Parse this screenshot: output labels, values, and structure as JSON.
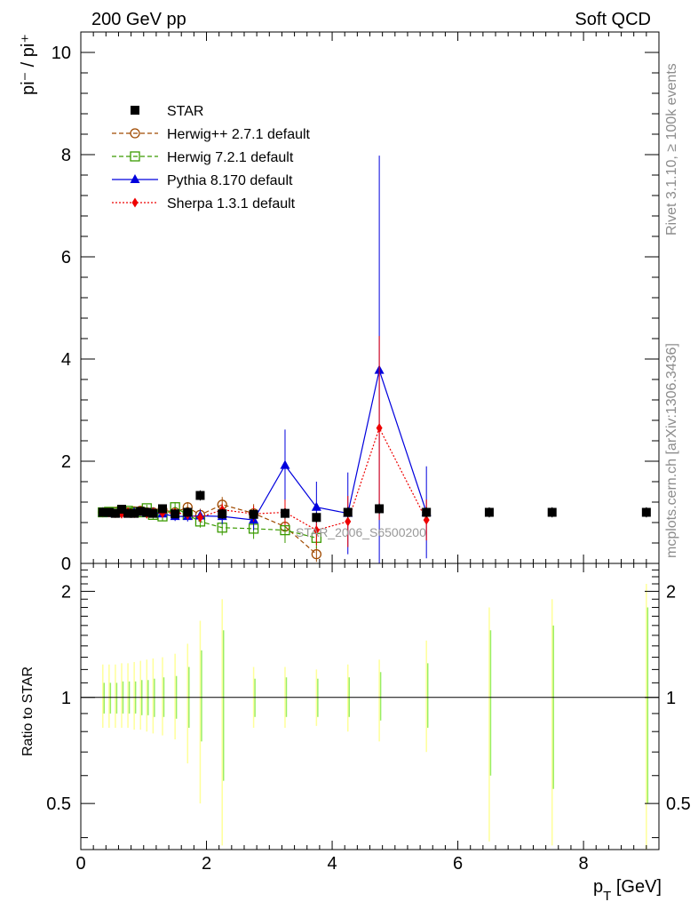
{
  "header": {
    "left": "200 GeV pp",
    "right": "Soft QCD"
  },
  "side_labels": {
    "rivet": "Rivet 3.1.10, ≥ 100k events",
    "mcplots": "mcplots.cern.ch [arXiv:1306.3436]"
  },
  "colors": {
    "star": "#000000",
    "herwigpp": "#a04a00",
    "herwig7": "#3a9a00",
    "pythia": "#0000dd",
    "sherpa": "#ee0000",
    "band_outer": "#ffff99",
    "band_inner": "#99ee66"
  },
  "chart_data": [
    {
      "type": "scatter",
      "title": "",
      "ylabel": "pi⁻ / pi⁺",
      "xlim": [
        0,
        9.2
      ],
      "ylim": [
        0,
        10.4
      ],
      "yticks": [
        0,
        2,
        4,
        6,
        8,
        10
      ],
      "watermark": "STAR_2006_S6500200",
      "legend_position": "top-left",
      "series": [
        {
          "name": "STAR",
          "style": "data",
          "color": "#000000",
          "points": [
            [
              0.35,
              1.0,
              0.04
            ],
            [
              0.45,
              1.0,
              0.04
            ],
            [
              0.55,
              0.98,
              0.04
            ],
            [
              0.65,
              1.06,
              0.05
            ],
            [
              0.75,
              0.98,
              0.05
            ],
            [
              0.85,
              0.98,
              0.05
            ],
            [
              0.95,
              1.02,
              0.06
            ],
            [
              1.05,
              1.0,
              0.06
            ],
            [
              1.15,
              0.98,
              0.06
            ],
            [
              1.3,
              1.07,
              0.07
            ],
            [
              1.5,
              0.97,
              0.08
            ],
            [
              1.7,
              1.0,
              0.09
            ],
            [
              1.9,
              1.33,
              0.1
            ],
            [
              2.25,
              0.97,
              0.1
            ],
            [
              2.75,
              0.96,
              0.1
            ],
            [
              3.25,
              0.98,
              0.1
            ],
            [
              3.75,
              0.9,
              0.1
            ],
            [
              4.25,
              1.0,
              0.1
            ],
            [
              4.75,
              1.07,
              0.1
            ],
            [
              5.5,
              1.0,
              0.1
            ],
            [
              6.5,
              1.0,
              0.1
            ],
            [
              7.5,
              1.0,
              0.1
            ],
            [
              9.0,
              1.0,
              0.1
            ]
          ]
        },
        {
          "name": "Herwig++ 2.7.1 default",
          "style": "dashed",
          "marker": "open-circle",
          "color": "#a04a00",
          "points": [
            [
              0.35,
              1.0,
              0.05
            ],
            [
              0.45,
              1.0,
              0.05
            ],
            [
              0.55,
              1.01,
              0.05
            ],
            [
              0.65,
              1.02,
              0.05
            ],
            [
              0.75,
              1.0,
              0.05
            ],
            [
              0.85,
              1.02,
              0.06
            ],
            [
              0.95,
              1.03,
              0.06
            ],
            [
              1.05,
              1.0,
              0.06
            ],
            [
              1.15,
              1.0,
              0.06
            ],
            [
              1.3,
              1.05,
              0.07
            ],
            [
              1.5,
              1.0,
              0.08
            ],
            [
              1.7,
              1.1,
              0.1
            ],
            [
              1.9,
              0.95,
              0.12
            ],
            [
              2.25,
              1.15,
              0.15
            ],
            [
              2.75,
              0.98,
              0.18
            ],
            [
              3.25,
              0.72,
              0.2
            ],
            [
              3.75,
              0.18,
              0.15
            ]
          ]
        },
        {
          "name": "Herwig 7.2.1 default",
          "style": "dashed",
          "marker": "open-square",
          "color": "#3a9a00",
          "points": [
            [
              0.35,
              1.0,
              0.05
            ],
            [
              0.45,
              1.01,
              0.05
            ],
            [
              0.55,
              1.0,
              0.05
            ],
            [
              0.65,
              1.02,
              0.05
            ],
            [
              0.75,
              1.03,
              0.05
            ],
            [
              0.85,
              1.0,
              0.06
            ],
            [
              0.95,
              1.0,
              0.06
            ],
            [
              1.05,
              1.08,
              0.07
            ],
            [
              1.15,
              0.95,
              0.08
            ],
            [
              1.3,
              0.92,
              0.09
            ],
            [
              1.5,
              1.1,
              0.1
            ],
            [
              1.7,
              0.95,
              0.1
            ],
            [
              1.9,
              0.82,
              0.12
            ],
            [
              2.25,
              0.7,
              0.15
            ],
            [
              2.75,
              0.68,
              0.2
            ],
            [
              3.25,
              0.65,
              0.25
            ],
            [
              3.75,
              0.5,
              0.2
            ]
          ]
        },
        {
          "name": "Pythia 8.170 default",
          "style": "solid",
          "marker": "triangle",
          "color": "#0000dd",
          "points": [
            [
              0.35,
              1.0,
              0.04
            ],
            [
              0.45,
              0.98,
              0.04
            ],
            [
              0.55,
              0.97,
              0.04
            ],
            [
              0.65,
              1.0,
              0.05
            ],
            [
              0.75,
              0.98,
              0.05
            ],
            [
              0.85,
              1.0,
              0.05
            ],
            [
              0.95,
              1.0,
              0.06
            ],
            [
              1.05,
              0.98,
              0.06
            ],
            [
              1.15,
              1.0,
              0.07
            ],
            [
              1.3,
              0.97,
              0.08
            ],
            [
              1.5,
              0.92,
              0.09
            ],
            [
              1.7,
              0.92,
              0.1
            ],
            [
              1.9,
              0.93,
              0.12
            ],
            [
              2.25,
              0.92,
              0.15
            ],
            [
              2.75,
              0.85,
              0.2
            ],
            [
              3.25,
              1.92,
              0.7
            ],
            [
              3.75,
              1.1,
              0.5
            ],
            [
              4.25,
              0.98,
              0.8
            ],
            [
              4.75,
              3.78,
              4.2
            ],
            [
              5.5,
              1.0,
              0.9
            ]
          ]
        },
        {
          "name": "Sherpa 1.3.1 default",
          "style": "dotted",
          "marker": "diamond",
          "color": "#ee0000",
          "points": [
            [
              0.35,
              1.0,
              0.04
            ],
            [
              0.45,
              1.0,
              0.04
            ],
            [
              0.55,
              0.98,
              0.04
            ],
            [
              0.65,
              0.97,
              0.05
            ],
            [
              0.75,
              1.0,
              0.05
            ],
            [
              0.85,
              0.98,
              0.05
            ],
            [
              0.95,
              1.02,
              0.06
            ],
            [
              1.05,
              0.97,
              0.06
            ],
            [
              1.15,
              1.0,
              0.07
            ],
            [
              1.3,
              0.98,
              0.07
            ],
            [
              1.5,
              1.0,
              0.08
            ],
            [
              1.7,
              0.95,
              0.09
            ],
            [
              1.9,
              0.9,
              0.1
            ],
            [
              2.25,
              1.05,
              0.12
            ],
            [
              2.75,
              0.97,
              0.15
            ],
            [
              3.25,
              1.0,
              0.25
            ],
            [
              3.75,
              0.65,
              0.3
            ],
            [
              4.25,
              0.82,
              0.5
            ],
            [
              4.75,
              2.65,
              1.8
            ],
            [
              5.5,
              0.85,
              0.4
            ]
          ]
        }
      ]
    },
    {
      "type": "scatter",
      "ylabel": "Ratio to STAR",
      "xlabel": "p_T [GeV]",
      "xlim": [
        0,
        9.2
      ],
      "ylim": [
        0.37,
        2.4
      ],
      "yscale": "log",
      "yticks": [
        0.5,
        1,
        2
      ],
      "xticks": [
        0,
        2,
        4,
        6,
        8
      ],
      "reference_line": 1,
      "bands": [
        {
          "x": 0.35,
          "inner": [
            0.9,
            1.1
          ],
          "outer": [
            0.82,
            1.24
          ]
        },
        {
          "x": 0.45,
          "inner": [
            0.9,
            1.1
          ],
          "outer": [
            0.82,
            1.24
          ]
        },
        {
          "x": 0.55,
          "inner": [
            0.9,
            1.1
          ],
          "outer": [
            0.82,
            1.24
          ]
        },
        {
          "x": 0.65,
          "inner": [
            0.9,
            1.11
          ],
          "outer": [
            0.82,
            1.25
          ]
        },
        {
          "x": 0.75,
          "inner": [
            0.9,
            1.11
          ],
          "outer": [
            0.82,
            1.25
          ]
        },
        {
          "x": 0.85,
          "inner": [
            0.9,
            1.11
          ],
          "outer": [
            0.81,
            1.26
          ]
        },
        {
          "x": 0.95,
          "inner": [
            0.89,
            1.12
          ],
          "outer": [
            0.81,
            1.27
          ]
        },
        {
          "x": 1.05,
          "inner": [
            0.89,
            1.12
          ],
          "outer": [
            0.8,
            1.28
          ]
        },
        {
          "x": 1.15,
          "inner": [
            0.88,
            1.13
          ],
          "outer": [
            0.79,
            1.29
          ]
        },
        {
          "x": 1.3,
          "inner": [
            0.88,
            1.14
          ],
          "outer": [
            0.78,
            1.3
          ]
        },
        {
          "x": 1.5,
          "inner": [
            0.87,
            1.15
          ],
          "outer": [
            0.76,
            1.33
          ]
        },
        {
          "x": 1.7,
          "inner": [
            0.82,
            1.22
          ],
          "outer": [
            0.65,
            1.42
          ]
        },
        {
          "x": 1.9,
          "inner": [
            0.75,
            1.36
          ],
          "outer": [
            0.5,
            1.65
          ]
        },
        {
          "x": 2.25,
          "inner": [
            0.58,
            1.55
          ],
          "outer": [
            0.38,
            1.9
          ]
        },
        {
          "x": 2.75,
          "inner": [
            0.88,
            1.13
          ],
          "outer": [
            0.82,
            1.22
          ]
        },
        {
          "x": 3.25,
          "inner": [
            0.88,
            1.14
          ],
          "outer": [
            0.82,
            1.22
          ]
        },
        {
          "x": 3.75,
          "inner": [
            0.88,
            1.13
          ],
          "outer": [
            0.83,
            1.2
          ]
        },
        {
          "x": 4.25,
          "inner": [
            0.88,
            1.14
          ],
          "outer": [
            0.8,
            1.24
          ]
        },
        {
          "x": 4.75,
          "inner": [
            0.86,
            1.18
          ],
          "outer": [
            0.75,
            1.28
          ]
        },
        {
          "x": 5.5,
          "inner": [
            0.82,
            1.25
          ],
          "outer": [
            0.7,
            1.45
          ]
        },
        {
          "x": 6.5,
          "inner": [
            0.6,
            1.55
          ],
          "outer": [
            0.39,
            1.8
          ]
        },
        {
          "x": 7.5,
          "inner": [
            0.55,
            1.6
          ],
          "outer": [
            0.38,
            1.9
          ]
        },
        {
          "x": 9.0,
          "inner": [
            0.5,
            1.8
          ],
          "outer": [
            0.37,
            2.1
          ]
        }
      ]
    }
  ]
}
